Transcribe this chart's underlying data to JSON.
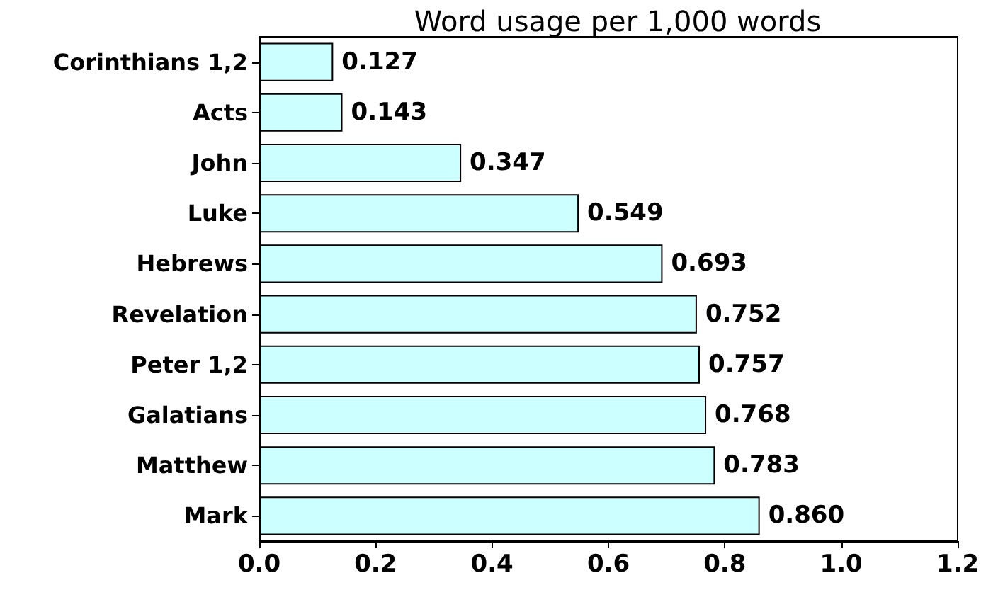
{
  "chart_data": {
    "type": "bar",
    "orientation": "horizontal",
    "title": "Word usage per 1,000 words",
    "categories": [
      "Corinthians 1,2",
      "Acts",
      "John",
      "Luke",
      "Hebrews",
      "Revelation",
      "Peter 1,2",
      "Galatians",
      "Matthew",
      "Mark"
    ],
    "values": [
      0.127,
      0.143,
      0.347,
      0.549,
      0.693,
      0.752,
      0.757,
      0.768,
      0.783,
      0.86
    ],
    "value_labels": [
      "0.127",
      "0.143",
      "0.347",
      "0.549",
      "0.693",
      "0.752",
      "0.757",
      "0.768",
      "0.783",
      "0.860"
    ],
    "color": "#ccffff",
    "xlim": [
      0,
      1.2
    ],
    "xticks": [
      {
        "value": 0,
        "label": "0.0"
      },
      {
        "value": 0.2,
        "label": "0.2"
      },
      {
        "value": 0.4,
        "label": "0.4"
      },
      {
        "value": 0.6,
        "label": "0.6"
      },
      {
        "value": 0.8,
        "label": "0.8"
      },
      {
        "value": 1,
        "label": "1.0"
      },
      {
        "value": 1.2,
        "label": "1.2"
      }
    ],
    "grid": false
  }
}
